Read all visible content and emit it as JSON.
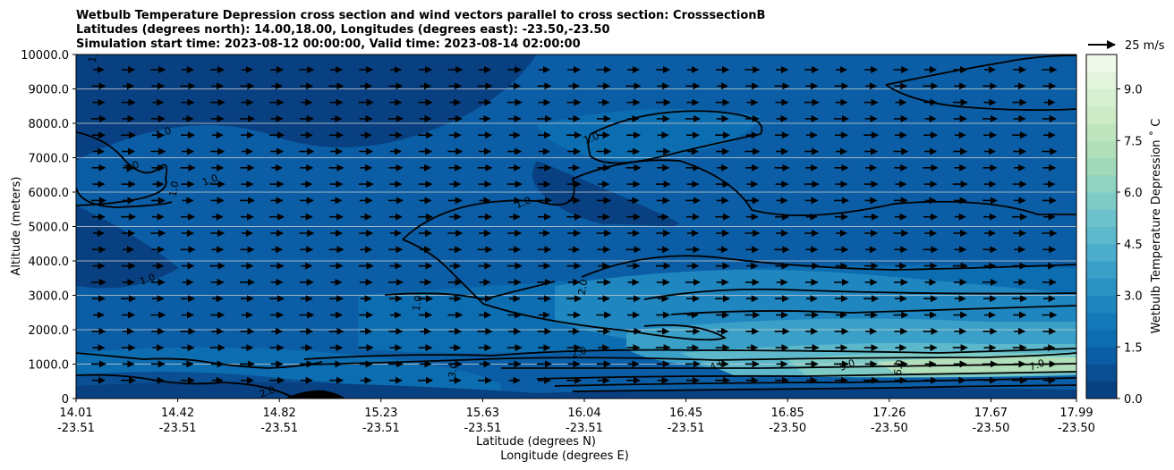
{
  "chart_data": {
    "type": "heatmap",
    "title_lines": [
      "Wetbulb Temperature Depression cross section and wind vectors parallel to cross section: CrosssectionB",
      "Latitudes (degrees north): 14.00,18.00, Longitudes (degrees east): -23.50,-23.50",
      "Simulation start time: 2023-08-12 00:00:00, Valid time: 2023-08-14 02:00:00"
    ],
    "xlabel_lat": "Latitude (degrees N)",
    "xlabel_lon": "Longitude (degrees E)",
    "ylabel": "Altitude (meters)",
    "x_ticks": [
      {
        "lat": "14.01",
        "lon": "-23.51"
      },
      {
        "lat": "14.42",
        "lon": "-23.51"
      },
      {
        "lat": "14.82",
        "lon": "-23.51"
      },
      {
        "lat": "15.23",
        "lon": "-23.51"
      },
      {
        "lat": "15.63",
        "lon": "-23.51"
      },
      {
        "lat": "16.04",
        "lon": "-23.51"
      },
      {
        "lat": "16.45",
        "lon": "-23.51"
      },
      {
        "lat": "16.85",
        "lon": "-23.50"
      },
      {
        "lat": "17.26",
        "lon": "-23.50"
      },
      {
        "lat": "17.67",
        "lon": "-23.50"
      },
      {
        "lat": "17.99",
        "lon": "-23.50"
      }
    ],
    "y_ticks": [
      "0",
      "1000.0",
      "2000.0",
      "3000.0",
      "4000.0",
      "5000.0",
      "6000.0",
      "7000.0",
      "8000.0",
      "9000.0",
      "10000.0"
    ],
    "ylim": [
      0,
      10000
    ],
    "colorbar": {
      "label": "Wetbulb Temperature Depression ˚ C",
      "ticks": [
        "0.0",
        "1.5",
        "3.0",
        "4.5",
        "6.0",
        "7.5",
        "9.0"
      ],
      "range": [
        0,
        10
      ],
      "levels": 20,
      "colors": [
        "#084081",
        "#0a4f93",
        "#0b5ea5",
        "#0c6db0",
        "#1479b8",
        "#1f86bf",
        "#2b93c4",
        "#3aa0c8",
        "#4badcb",
        "#5db8cb",
        "#6ec2cb",
        "#7ecbc6",
        "#8fd3c0",
        "#a0d9ba",
        "#b0dfba",
        "#bfe5bf",
        "#ccebc6",
        "#d7f0d1",
        "#e3f4dd",
        "#f0f9ea"
      ]
    },
    "wind_key": {
      "label": "25 m/s",
      "speed": 25
    },
    "contour_labels": [
      "1.0",
      "1.0",
      "1.0",
      "1.0",
      "1.0",
      "1.0",
      "1.0",
      "1.0",
      "1.0",
      "2.0",
      "2.0",
      "2.0",
      "3.0",
      "4.0",
      "5.0",
      "6.0",
      "7.0"
    ]
  }
}
